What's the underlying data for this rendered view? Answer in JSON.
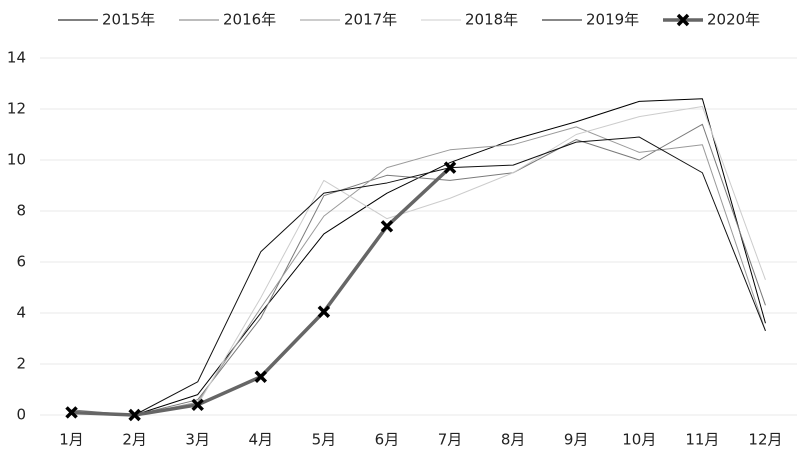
{
  "chart_data": {
    "type": "line",
    "categories": [
      "1月",
      "2月",
      "3月",
      "4月",
      "5月",
      "6月",
      "7月",
      "8月",
      "9月",
      "10月",
      "11月",
      "12月"
    ],
    "series": [
      {
        "name": "2015年",
        "color": "#000000",
        "width": 1,
        "values": [
          0.1,
          0,
          0.8,
          4.0,
          7.1,
          8.7,
          9.9,
          10.8,
          11.5,
          12.3,
          12.4,
          3.6
        ]
      },
      {
        "name": "2016年",
        "color": "#7a7a7a",
        "width": 1,
        "values": [
          0.2,
          0,
          0.6,
          3.8,
          8.6,
          9.4,
          9.2,
          9.5,
          10.8,
          10.0,
          11.4,
          4.3
        ]
      },
      {
        "name": "2017年",
        "color": "#9a9a9a",
        "width": 1,
        "values": [
          0.1,
          0,
          0.5,
          4.2,
          7.8,
          9.7,
          10.4,
          10.6,
          11.3,
          10.3,
          10.6,
          3.3
        ]
      },
      {
        "name": "2018年",
        "color": "#cccccc",
        "width": 1,
        "values": [
          0.1,
          0,
          0.4,
          4.6,
          9.2,
          7.7,
          8.5,
          9.5,
          11.0,
          11.7,
          12.1,
          5.3
        ]
      },
      {
        "name": "2019年",
        "color": "#111111",
        "width": 1,
        "values": [
          0.1,
          0,
          1.3,
          6.4,
          8.7,
          9.1,
          9.7,
          9.8,
          10.7,
          10.9,
          9.5,
          3.3
        ]
      },
      {
        "name": "2020年",
        "color": "#666666",
        "width": 3.5,
        "marker": "x",
        "values": [
          0.1,
          0,
          0.4,
          1.5,
          4.05,
          7.4,
          9.7,
          null,
          null,
          null,
          null,
          null
        ]
      }
    ],
    "ylim": [
      0,
      14
    ],
    "yticks": [
      0,
      2,
      4,
      6,
      8,
      10,
      12,
      14
    ],
    "grid": true,
    "legend": "top"
  }
}
